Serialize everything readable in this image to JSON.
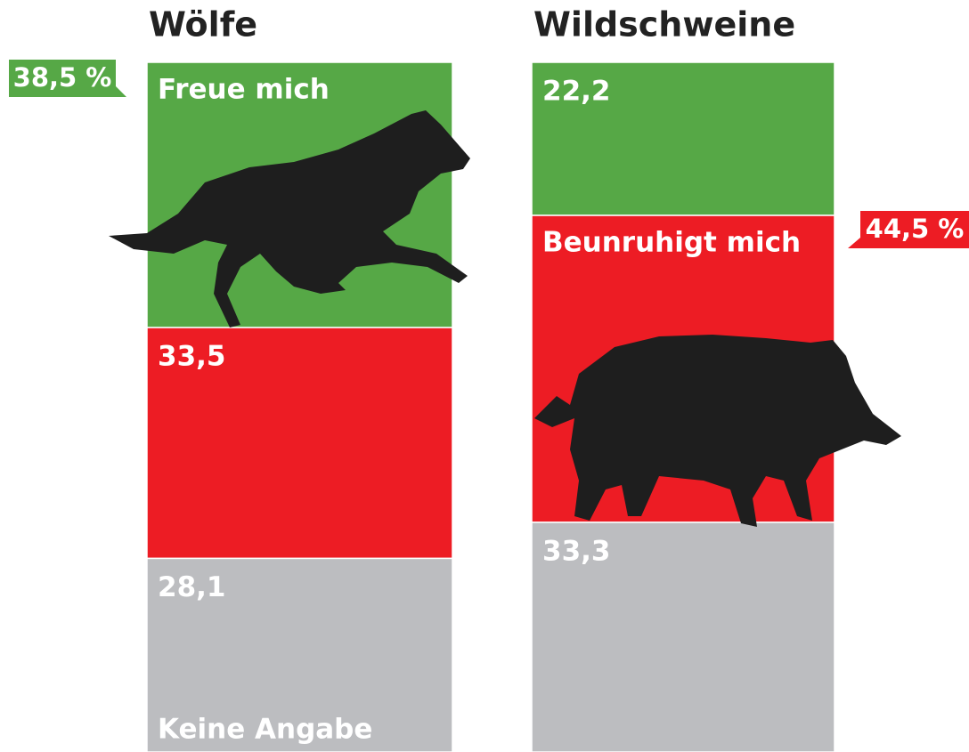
{
  "chart_data": {
    "type": "stacked-bar",
    "categories": [
      "Wölfe",
      "Wildschweine"
    ],
    "series": [
      {
        "name": "Freue mich",
        "color": "#56a846",
        "values": [
          38.5,
          22.2
        ],
        "value_labels": [
          "38,5 %",
          "22,2"
        ]
      },
      {
        "name": "Beunruhigt mich",
        "color": "#ed1c24",
        "values": [
          33.5,
          44.5
        ],
        "value_labels": [
          "33,5",
          "44,5 %"
        ]
      },
      {
        "name": "Keine Angabe",
        "color": "#bcbdc0",
        "values": [
          28.1,
          33.3
        ],
        "value_labels": [
          "28,1",
          "33,3"
        ]
      }
    ]
  }
}
